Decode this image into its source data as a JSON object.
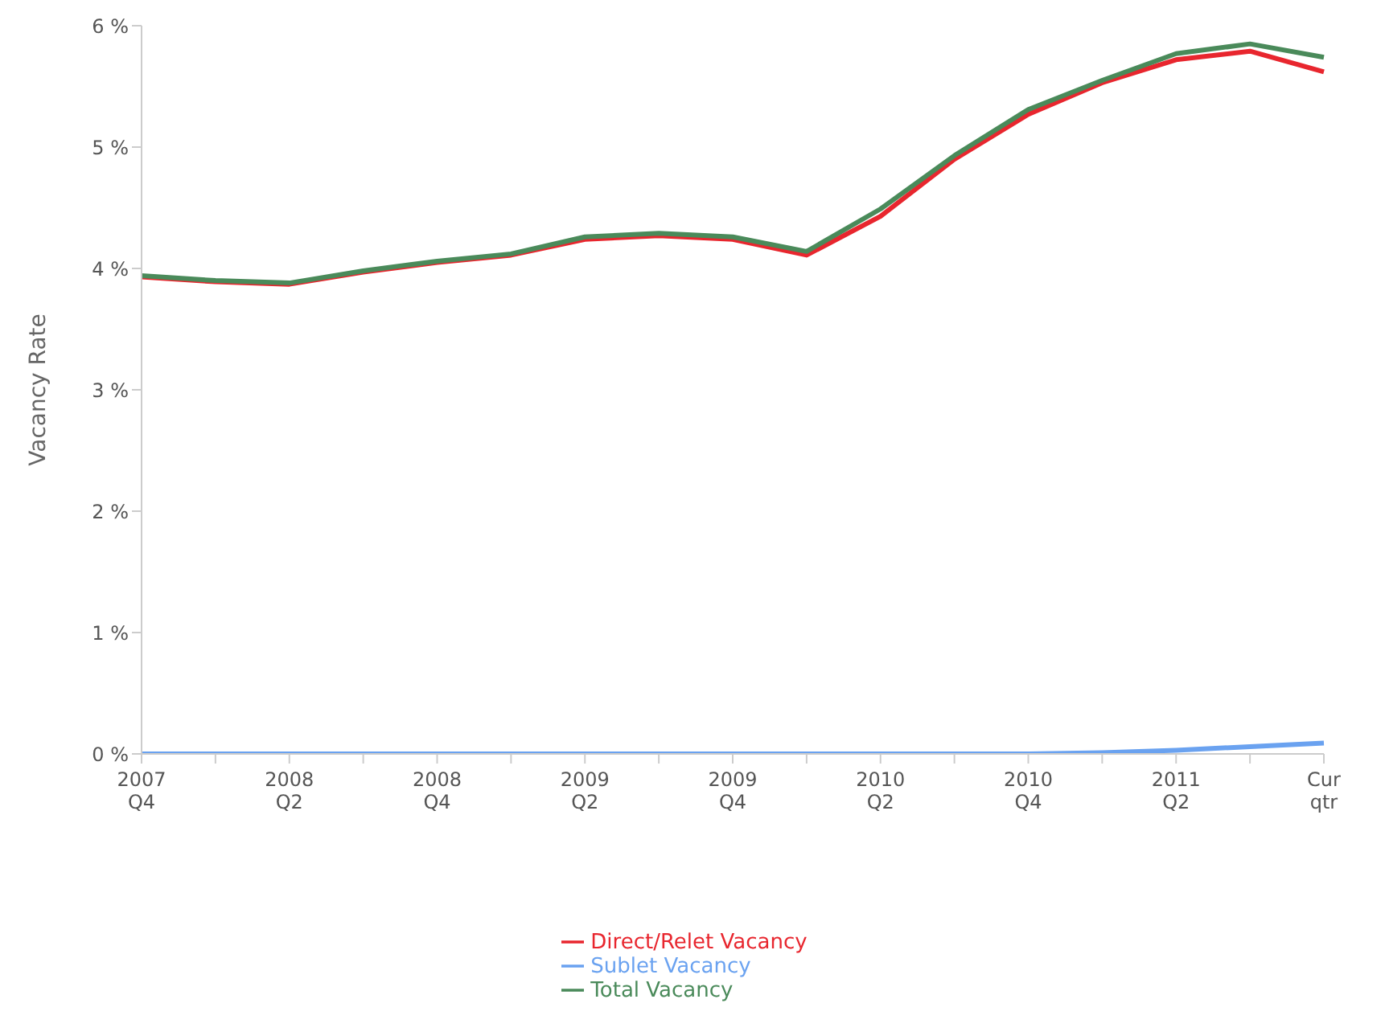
{
  "chart_data": {
    "type": "line",
    "ylabel": "Vacancy Rate",
    "categories": [
      "2007 Q4",
      null,
      "2008 Q2",
      null,
      "2008 Q4",
      null,
      "2009 Q2",
      null,
      "2009 Q4",
      null,
      "2010 Q2",
      null,
      "2010 Q4",
      null,
      "2011 Q2",
      null,
      "Cur qtr"
    ],
    "series": [
      {
        "name": "Direct/Relet Vacancy",
        "color": "#e8262e",
        "values": [
          3.93,
          3.89,
          3.87,
          3.97,
          4.05,
          4.11,
          4.24,
          4.27,
          4.24,
          4.11,
          4.43,
          4.9,
          5.27,
          5.53,
          5.72,
          5.79,
          5.62
        ]
      },
      {
        "name": "Sublet Vacancy",
        "color": "#6aa2f0",
        "values": [
          0,
          0,
          0,
          0,
          0,
          0,
          0,
          0,
          0,
          0,
          0,
          0,
          0,
          0.01,
          0.03,
          0.06,
          0.09
        ]
      },
      {
        "name": "Total Vacancy",
        "color": "#4a8a5a",
        "values": [
          3.94,
          3.9,
          3.88,
          3.98,
          4.06,
          4.12,
          4.26,
          4.29,
          4.26,
          4.14,
          4.49,
          4.93,
          5.31,
          5.55,
          5.77,
          5.85,
          5.74
        ]
      }
    ],
    "ylim": [
      0,
      6
    ],
    "yticks": [
      {
        "value": 0,
        "label": "0 %"
      },
      {
        "value": 1,
        "label": "1 %"
      },
      {
        "value": 2,
        "label": "2 %"
      },
      {
        "value": 3,
        "label": "3 %"
      },
      {
        "value": 4,
        "label": "4 %"
      },
      {
        "value": 5,
        "label": "5 %"
      },
      {
        "value": 6,
        "label": "6 %"
      }
    ],
    "legend": "bottom",
    "grid": false,
    "marker": "none",
    "line_style": "solid"
  }
}
